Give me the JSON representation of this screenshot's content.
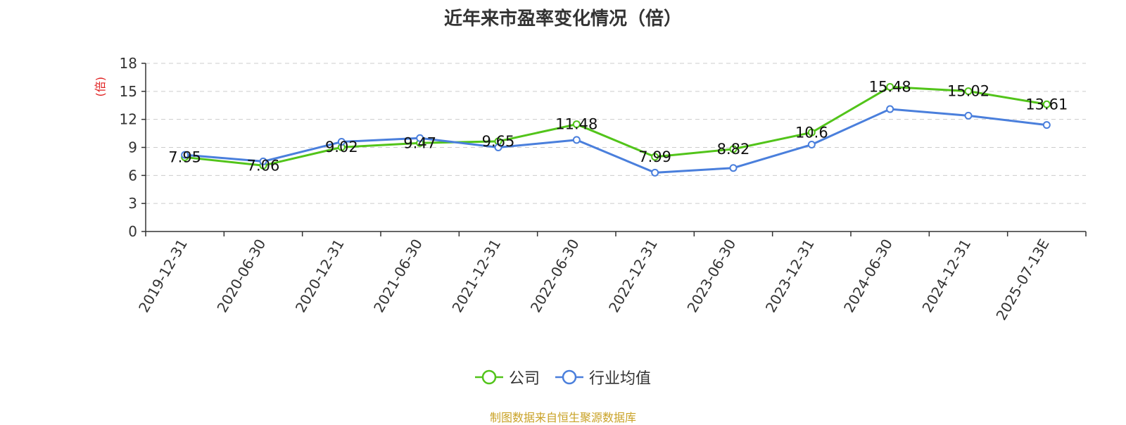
{
  "chart_data": {
    "type": "line",
    "title": "近年来市盈率变化情况（倍）",
    "ylabel": "(倍)",
    "xlabel": "",
    "categories": [
      "2019-12-31",
      "2020-06-30",
      "2020-12-31",
      "2021-06-30",
      "2021-12-31",
      "2022-06-30",
      "2022-12-31",
      "2023-06-30",
      "2023-12-31",
      "2024-06-30",
      "2024-12-31",
      "2025-07-13E"
    ],
    "ylim": [
      0,
      18
    ],
    "yticks": [
      0,
      3,
      6,
      9,
      12,
      15,
      18
    ],
    "grid": true,
    "legend_position": "bottom",
    "series": [
      {
        "name": "公司",
        "color": "#52c41a",
        "values": [
          7.95,
          7.06,
          9.02,
          9.47,
          9.65,
          11.48,
          7.99,
          8.82,
          10.6,
          15.48,
          15.02,
          13.61
        ],
        "labels": [
          "7.95",
          "7.06",
          "9.02",
          "9.47",
          "9.65",
          "11.48",
          "7.99",
          "8.82",
          "10.6",
          "15.48",
          "15.02",
          "13.61"
        ]
      },
      {
        "name": "行业均值",
        "color": "#4a7fdc",
        "values": [
          8.2,
          7.5,
          9.6,
          10.0,
          9.0,
          9.8,
          6.3,
          6.8,
          9.3,
          13.1,
          12.4,
          11.4
        ]
      }
    ]
  },
  "source_note": "制图数据来自恒生聚源数据库",
  "colors": {
    "axis": "#333333",
    "grid": "#cccccc",
    "ylabel": "#e02020",
    "source": "#c9a227"
  }
}
